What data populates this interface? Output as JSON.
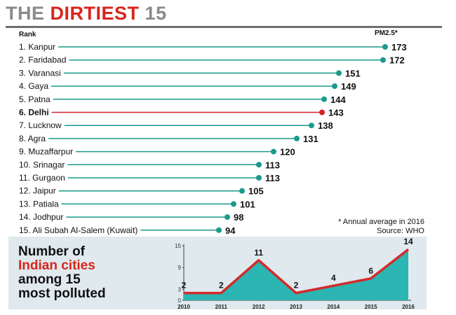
{
  "title": {
    "part1": "THE",
    "part2": "DIRTIEST",
    "part3": "15"
  },
  "chart_data": [
    {
      "type": "bar",
      "style": "lollipop",
      "header_left": "Rank",
      "header_right": "PM2.5*",
      "highlight": "6. Delhi",
      "accent_color": "#1a9a8c",
      "highlight_color": "#d0202a",
      "categories": [
        "1. Kanpur",
        "2. Faridabad",
        "3. Varanasi",
        "4. Gaya",
        "5. Patna",
        "6. Delhi",
        "7. Lucknow",
        "8. Agra",
        "9. Muzaffarpur",
        "10. Srinagar",
        "11. Gurgaon",
        "12. Jaipur",
        "13. Patiala",
        "14. Jodhpur",
        "15. Ali Subah Al-Salem (Kuwait)"
      ],
      "values": [
        173,
        172,
        151,
        149,
        144,
        143,
        138,
        131,
        120,
        113,
        113,
        105,
        101,
        98,
        94
      ],
      "footnote": "* Annual average in 2016",
      "source": "Source: WHO"
    },
    {
      "type": "area",
      "title": [
        "Number of",
        "Indian cities",
        "among 15",
        "most polluted"
      ],
      "x": [
        "2010",
        "2011",
        "2012",
        "2013",
        "2014",
        "2015",
        "2016"
      ],
      "values": [
        2,
        2,
        11,
        2,
        4,
        6,
        14
      ],
      "yticks": [
        "15",
        "9",
        "3",
        "0"
      ],
      "ylim": [
        0,
        15
      ],
      "fill_color": "#2bb5b3",
      "line_color": "#d42a2a"
    }
  ]
}
